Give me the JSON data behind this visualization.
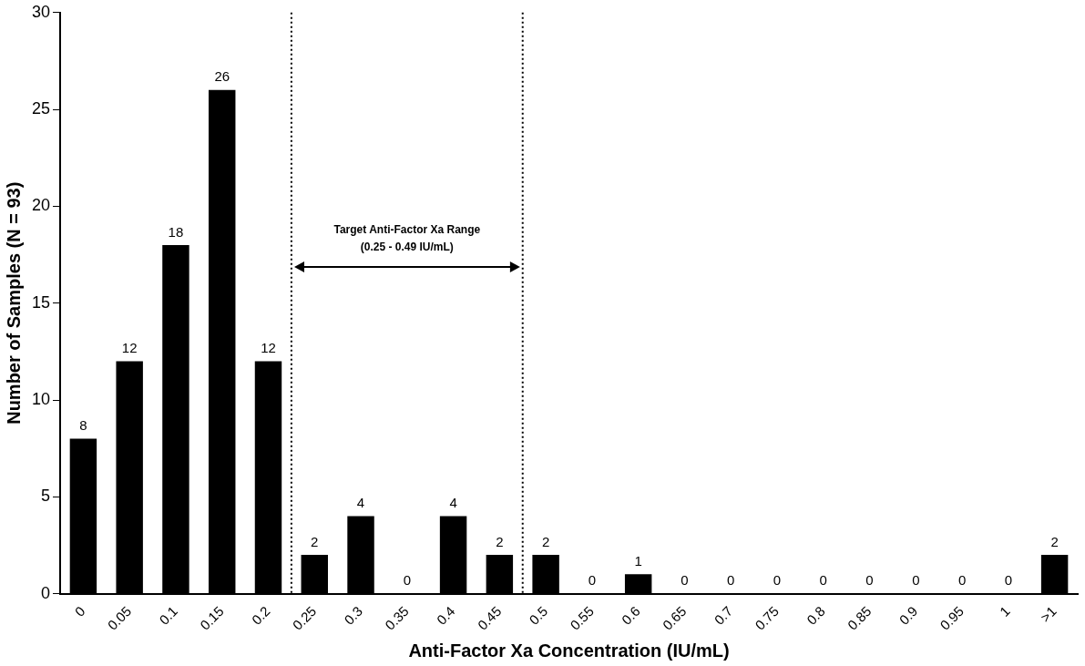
{
  "chart_data": {
    "type": "bar",
    "xlabel": "Anti-Factor Xa Concentration (IU/mL)",
    "ylabel": "Number of Samples (N = 93)",
    "categories": [
      "0",
      "0.05",
      "0.1",
      "0.15",
      "0.2",
      "0.25",
      "0.3",
      "0.35",
      "0.4",
      "0.45",
      "0.5",
      "0.55",
      "0.6",
      "0.65",
      "0.7",
      "0.75",
      "0.8",
      "0.85",
      "0.9",
      "0.95",
      "1",
      ">1"
    ],
    "values": [
      8,
      12,
      18,
      26,
      12,
      2,
      4,
      0,
      4,
      2,
      2,
      0,
      1,
      0,
      0,
      0,
      0,
      0,
      0,
      0,
      0,
      2
    ],
    "color": "#000000",
    "ylim": [
      0,
      30
    ],
    "yticks": [
      0,
      5,
      10,
      15,
      20,
      25,
      30
    ],
    "grid": false,
    "legend": false,
    "data_labels": true,
    "ref_lines": [
      {
        "axis": "x",
        "value": "0.25",
        "color": "#000000",
        "line_style": "dotted"
      },
      {
        "axis": "x",
        "value": "0.5",
        "color": "#000000",
        "line_style": "dotted"
      }
    ],
    "annotations": [
      "Target Anti-Factor Xa Range",
      "(0.25 - 0.49 IU/mL)"
    ]
  }
}
